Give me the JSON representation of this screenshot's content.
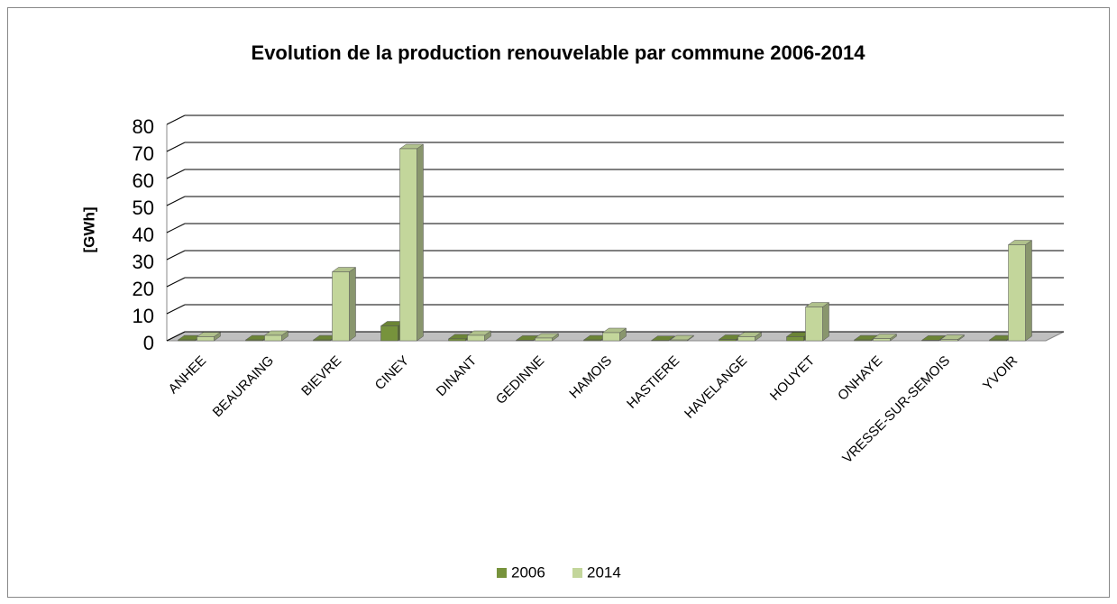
{
  "chart_data": {
    "type": "bar",
    "title": "Evolution de la production renouvelable par commune 2006-2014",
    "y_label": "[GWh]",
    "categories": [
      "ANHEE",
      "BEAURAING",
      "BIEVRE",
      "CINEY",
      "DINANT",
      "GEDINNE",
      "HAMOIS",
      "HASTIERE",
      "HAVELANGE",
      "HOUYET",
      "ONHAYE",
      "VRESSE-SUR-SEMOIS",
      "YVOIR"
    ],
    "series": [
      {
        "name": "2006",
        "color": "#77933c",
        "values": [
          0.3,
          0.3,
          0.3,
          5.5,
          0.7,
          0.2,
          0.3,
          0.1,
          0.5,
          1.5,
          0.3,
          0.2,
          0.3
        ]
      },
      {
        "name": "2014",
        "color": "#c3d69b",
        "values": [
          1.5,
          2,
          25.5,
          71,
          2,
          1,
          3,
          0.3,
          1.5,
          12.5,
          0.8,
          0.5,
          35.5
        ]
      }
    ],
    "ylim": [
      0,
      80
    ],
    "yticks": [
      0,
      10,
      20,
      30,
      40,
      50,
      60,
      70,
      80
    ],
    "grid": true,
    "legend": "bottom"
  }
}
